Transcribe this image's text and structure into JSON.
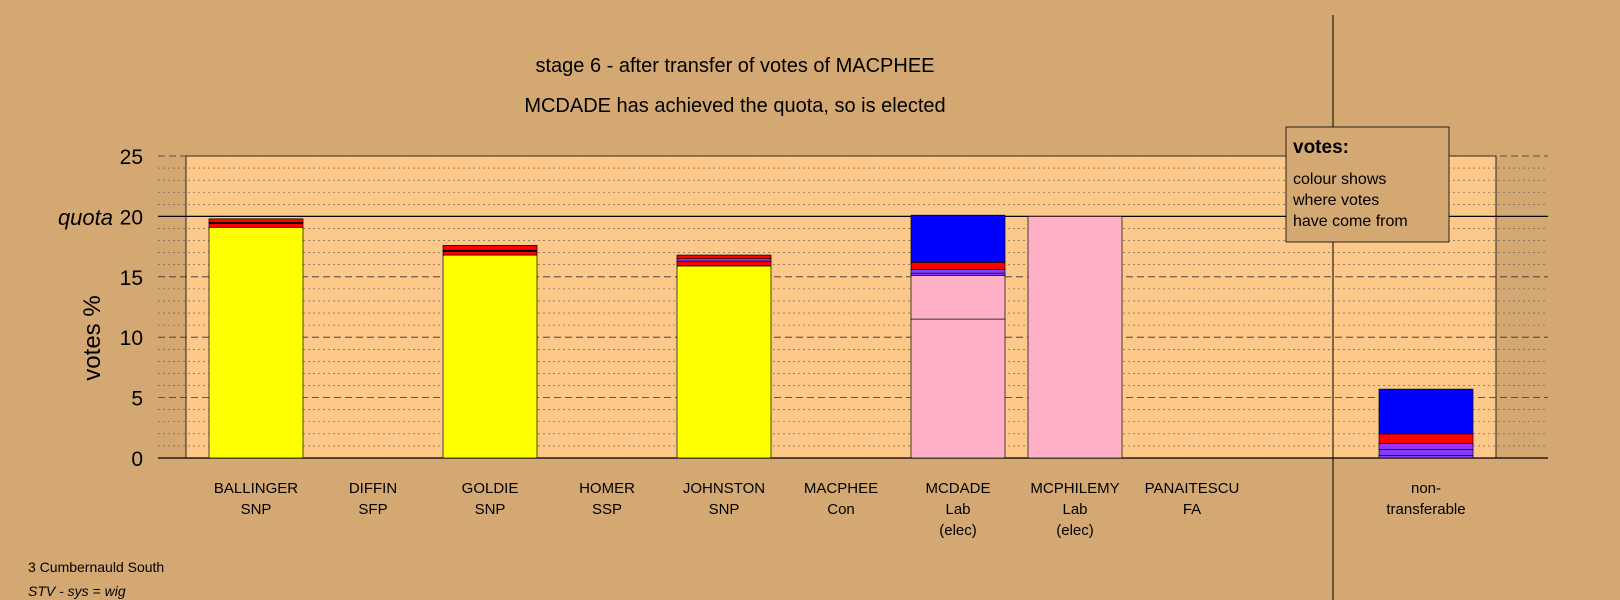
{
  "chart_data": {
    "type": "bar",
    "title": "stage 6 - after transfer of votes of MACPHEE",
    "subtitle": "MCDADE has achieved the quota, so is elected",
    "ylabel": "votes %",
    "quota_label": "quota",
    "quota": 20,
    "ylim": [
      0,
      25
    ],
    "yticks": [
      0,
      5,
      10,
      15,
      20,
      25
    ],
    "grid": true,
    "legend": {
      "placement": "top-right",
      "title": "votes:",
      "lines": [
        "colour shows",
        "where votes",
        "have come from"
      ]
    },
    "colors": {
      "background": "#d4a873",
      "plot_area": "#fcc98a",
      "snp": "#ffff00",
      "lab": "#ffb0c4",
      "transfer_red": "#ff0000",
      "transfer_purple": "#9933ff",
      "transfer_blue": "#0000ff",
      "nontransferable_blue": "#0000ff"
    },
    "candidates": [
      {
        "name": "BALLINGER",
        "party": "SNP",
        "note": "",
        "segments": [
          {
            "value": 19.1,
            "color": "#ffff00"
          },
          {
            "value": 0.3,
            "color": "#ff0000"
          },
          {
            "value": 0.1,
            "color": "#000000"
          },
          {
            "value": 0.3,
            "color": "#ff0000"
          }
        ]
      },
      {
        "name": "DIFFIN",
        "party": "SFP",
        "note": "",
        "segments": []
      },
      {
        "name": "GOLDIE",
        "party": "SNP",
        "note": "",
        "segments": [
          {
            "value": 16.8,
            "color": "#ffff00"
          },
          {
            "value": 0.3,
            "color": "#ff0000"
          },
          {
            "value": 0.1,
            "color": "#000000"
          },
          {
            "value": 0.4,
            "color": "#ff0000"
          }
        ]
      },
      {
        "name": "HOMER",
        "party": "SSP",
        "note": "",
        "segments": []
      },
      {
        "name": "JOHNSTON",
        "party": "SNP",
        "note": "",
        "segments": [
          {
            "value": 15.9,
            "color": "#ffff00"
          },
          {
            "value": 0.4,
            "color": "#ff0000"
          },
          {
            "value": 0.2,
            "color": "#9933ff"
          },
          {
            "value": 0.3,
            "color": "#ff0000"
          }
        ]
      },
      {
        "name": "MACPHEE",
        "party": "Con",
        "note": "",
        "segments": []
      },
      {
        "name": "MCDADE",
        "party": "Lab",
        "note": "(elec)",
        "segments": [
          {
            "value": 11.5,
            "color": "#ffb0c4"
          },
          {
            "value": 3.6,
            "color": "#ffb0c4"
          },
          {
            "value": 0.2,
            "color": "#9933ff"
          },
          {
            "value": 0.3,
            "color": "#7f3fff"
          },
          {
            "value": 0.6,
            "color": "#ff0000"
          },
          {
            "value": 3.9,
            "color": "#0000ff"
          }
        ]
      },
      {
        "name": "MCPHILEMY",
        "party": "Lab",
        "note": "(elec)",
        "segments": [
          {
            "value": 20.0,
            "color": "#ffb0c4"
          }
        ]
      },
      {
        "name": "PANAITESCU",
        "party": "FA",
        "note": "",
        "segments": []
      }
    ],
    "nontransferable": {
      "line1": "non-",
      "line2": "transferable",
      "segments": [
        {
          "value": 0.2,
          "color": "#9933ff"
        },
        {
          "value": 0.5,
          "color": "#7f3fff"
        },
        {
          "value": 0.5,
          "color": "#9933ff"
        },
        {
          "value": 0.8,
          "color": "#ff0000"
        },
        {
          "value": 3.7,
          "color": "#0000ff"
        }
      ]
    }
  },
  "footer": {
    "ward": "3 Cumbernauld South",
    "system": "STV - sys = wig"
  }
}
